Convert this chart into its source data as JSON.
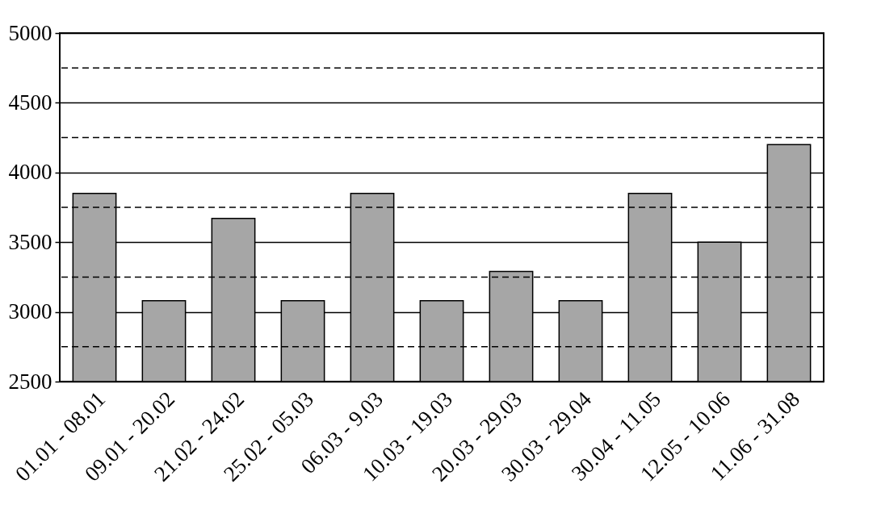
{
  "chart_data": {
    "type": "bar",
    "categories": [
      "01.01 - 08.01",
      "09.01 - 20.02",
      "21.02 - 24.02",
      "25.02 - 05.03",
      "06.03 - 9.03",
      "10.03 - 19.03",
      "20.03 - 29.03",
      "30.03 - 29.04",
      "30.04 - 11.05",
      "12.05 - 10.06",
      "11.06 - 31.08"
    ],
    "values": [
      3850,
      3080,
      3670,
      3080,
      3850,
      3080,
      3290,
      3080,
      3850,
      3500,
      4200
    ],
    "color": "#a6a6a6",
    "ylim": [
      2500,
      5000
    ],
    "yticks": [
      2500,
      3000,
      3500,
      4000,
      4500,
      5000
    ],
    "grid": "y",
    "ref_lines": [
      {
        "axis": "y",
        "value": 2750,
        "line_style": "dashed"
      },
      {
        "axis": "y",
        "value": 3250,
        "line_style": "dashed"
      },
      {
        "axis": "y",
        "value": 3750,
        "line_style": "dashed"
      },
      {
        "axis": "y",
        "value": 4250,
        "line_style": "dashed"
      },
      {
        "axis": "y",
        "value": 4750,
        "line_style": "dashed"
      }
    ]
  }
}
